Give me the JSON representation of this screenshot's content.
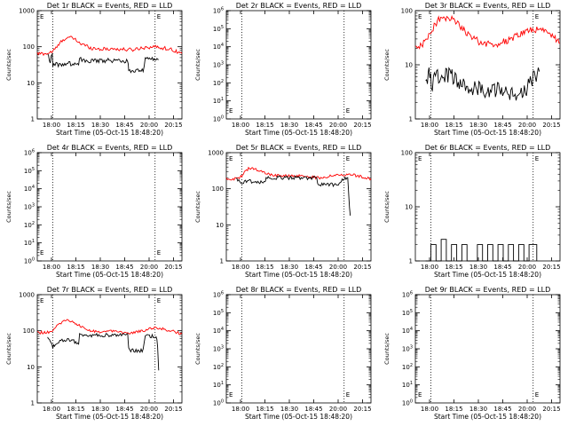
{
  "figure": {
    "background": "#ffffff",
    "events_color": "#000000",
    "lld_color": "#ff0000"
  },
  "chart_data": [
    {
      "type": "line",
      "title": "Det 1r BLACK = Events, RED = LLD",
      "ylabel": "Counts/sec",
      "xlabel": "Start Time (05-Oct-15 18:48:20)",
      "xlim": [
        17.75,
        20.55
      ],
      "ylim": [
        1,
        1000
      ],
      "yscale": "log",
      "ytick_labels": [
        "1",
        "10",
        "100",
        "1000"
      ],
      "xtick_labels": [
        "18:00",
        "18:15",
        "18:30",
        "18:45",
        "20:00",
        "20:15"
      ],
      "markers": [
        {
          "x": 18.05,
          "label": "E"
        },
        {
          "x": 20.03,
          "label": "E"
        }
      ],
      "series": [
        {
          "name": "LLD",
          "color": "#ff0000",
          "x": [
            17.75,
            17.95,
            18.05,
            18.15,
            18.25,
            18.35,
            18.45,
            18.6,
            18.8,
            19.0,
            19.2,
            19.4,
            19.6,
            19.8,
            20.0,
            20.2,
            20.4,
            20.55
          ],
          "y": [
            64,
            65,
            75,
            105,
            160,
            180,
            170,
            120,
            92,
            86,
            88,
            84,
            83,
            95,
            100,
            92,
            80,
            65
          ],
          "noise": 0.05
        },
        {
          "name": "Events",
          "color": "#000000",
          "x": [
            17.95,
            18.0,
            18.04,
            18.05,
            18.2,
            18.4,
            18.55,
            18.57,
            18.7,
            18.9,
            19.1,
            19.3,
            19.5,
            19.52,
            19.6,
            19.8,
            19.84,
            19.9,
            20.05,
            20.1
          ],
          "y": [
            60,
            40,
            60,
            32,
            32,
            34,
            30,
            45,
            40,
            40,
            42,
            40,
            40,
            22,
            22,
            22,
            45,
            45,
            45,
            44
          ],
          "noise": 0.06
        }
      ]
    },
    {
      "type": "line",
      "title": "Det 2r BLACK = Events, RED = LLD",
      "ylabel": "Counts/sec",
      "xlabel": "Start Time (05-Oct-15 18:48:20)",
      "xlim": [
        17.75,
        20.55
      ],
      "ylim": [
        1,
        1000000
      ],
      "yscale": "log",
      "ytick_labels": [
        "10^0",
        "10^1",
        "10^2",
        "10^3",
        "10^4",
        "10^5",
        "10^6"
      ],
      "xtick_labels": [
        "18:00",
        "18:15",
        "18:30",
        "18:45",
        "20:00",
        "20:15"
      ],
      "markers": [
        {
          "x": 18.05,
          "label": "E"
        },
        {
          "x": 20.03,
          "label": "E"
        }
      ],
      "series": []
    },
    {
      "type": "line",
      "title": "Det 3r BLACK = Events, RED = LLD",
      "ylabel": "Counts/sec",
      "xlabel": "Start Time (05-Oct-15 18:48:20)",
      "xlim": [
        17.75,
        20.55
      ],
      "ylim": [
        1,
        100
      ],
      "yscale": "log",
      "ytick_labels": [
        "1",
        "10",
        "100"
      ],
      "xtick_labels": [
        "18:00",
        "18:15",
        "18:30",
        "18:45",
        "20:00",
        "20:15"
      ],
      "markers": [
        {
          "x": 18.05,
          "label": "E"
        },
        {
          "x": 20.03,
          "label": "E"
        }
      ],
      "series": [
        {
          "name": "LLD",
          "color": "#ff0000",
          "x": [
            17.75,
            17.85,
            17.95,
            18.05,
            18.2,
            18.4,
            18.55,
            18.75,
            19.0,
            19.3,
            19.6,
            19.9,
            20.2,
            20.4,
            20.55
          ],
          "y": [
            20,
            22,
            28,
            42,
            68,
            76,
            62,
            38,
            26,
            23,
            30,
            42,
            46,
            35,
            25
          ],
          "noise": 0.06
        },
        {
          "name": "Events",
          "color": "#000000",
          "x": [
            17.95,
            18.0,
            18.03,
            18.06,
            18.2,
            18.4,
            18.6,
            18.8,
            19.0,
            19.3,
            19.6,
            19.8,
            19.9,
            20.05,
            20.15
          ],
          "y": [
            5,
            6,
            8,
            4.5,
            6,
            6.5,
            5,
            4,
            3.5,
            3.5,
            3,
            3,
            3.5,
            6,
            7.5
          ],
          "noise": 0.15
        }
      ]
    },
    {
      "type": "line",
      "title": "Det 4r BLACK = Events, RED = LLD",
      "ylabel": "Counts/sec",
      "xlabel": "Start Time (05-Oct-15 18:48:20)",
      "xlim": [
        17.75,
        20.55
      ],
      "ylim": [
        1,
        1000000
      ],
      "yscale": "log",
      "ytick_labels": [
        "10^0",
        "10^1",
        "10^2",
        "10^3",
        "10^4",
        "10^5",
        "10^6"
      ],
      "xtick_labels": [
        "18:00",
        "18:15",
        "18:30",
        "18:45",
        "20:00",
        "20:15"
      ],
      "markers": [
        {
          "x": 18.05,
          "label": "E"
        },
        {
          "x": 20.03,
          "label": "E"
        }
      ],
      "series": []
    },
    {
      "type": "line",
      "title": "Det 5r BLACK = Events, RED = LLD",
      "ylabel": "Counts/sec",
      "xlabel": "Start Time (05-Oct-15 18:48:20)",
      "xlim": [
        17.75,
        20.55
      ],
      "ylim": [
        1,
        1000
      ],
      "yscale": "log",
      "ytick_labels": [
        "1",
        "10",
        "100",
        "1000"
      ],
      "xtick_labels": [
        "18:00",
        "18:15",
        "18:30",
        "18:45",
        "20:00",
        "20:15"
      ],
      "markers": [
        {
          "x": 18.05,
          "label": "E"
        },
        {
          "x": 20.03,
          "label": "E"
        }
      ],
      "series": [
        {
          "name": "LLD",
          "color": "#ff0000",
          "x": [
            17.75,
            17.9,
            18.0,
            18.05,
            18.1,
            18.2,
            18.3,
            18.45,
            18.6,
            18.8,
            19.0,
            19.2,
            19.4,
            19.6,
            19.8,
            20.0,
            20.2,
            20.4,
            20.55
          ],
          "y": [
            185,
            190,
            200,
            230,
            290,
            380,
            360,
            300,
            250,
            230,
            220,
            225,
            210,
            200,
            230,
            250,
            240,
            210,
            190
          ],
          "noise": 0.04
        },
        {
          "name": "Events",
          "color": "#000000",
          "x": [
            17.95,
            18.05,
            18.1,
            18.3,
            18.5,
            18.52,
            18.7,
            18.9,
            19.1,
            19.3,
            19.5,
            19.52,
            19.7,
            19.9,
            20.05,
            20.1,
            20.12,
            20.15
          ],
          "y": [
            200,
            130,
            170,
            150,
            150,
            200,
            200,
            200,
            200,
            200,
            200,
            130,
            130,
            130,
            200,
            200,
            60,
            18
          ],
          "noise": 0.05
        }
      ]
    },
    {
      "type": "line",
      "title": "Det 6r BLACK = Events, RED = LLD",
      "ylabel": "Counts/sec",
      "xlabel": "Start Time (05-Oct-15 18:48:20)",
      "xlim": [
        17.75,
        20.55
      ],
      "ylim": [
        1,
        100
      ],
      "yscale": "log",
      "ytick_labels": [
        "1",
        "10",
        "100"
      ],
      "xtick_labels": [
        "18:00",
        "18:15",
        "18:30",
        "18:45",
        "20:00",
        "20:15"
      ],
      "markers": [
        {
          "x": 18.05,
          "label": "E"
        },
        {
          "x": 20.03,
          "label": "E"
        }
      ],
      "series": [
        {
          "name": "Events",
          "color": "#000000",
          "x": [
            17.95,
            18.05,
            18.15,
            18.25,
            18.35,
            18.45,
            18.55,
            18.65,
            18.75,
            18.85,
            18.95,
            19.05,
            19.15,
            19.25,
            19.35,
            19.45,
            19.55,
            19.65,
            19.75,
            19.85,
            19.95,
            20.05,
            20.1
          ],
          "y": [
            1,
            2,
            1,
            2.5,
            1,
            2,
            1,
            2,
            1,
            1,
            2,
            1,
            2,
            1,
            2,
            1,
            2,
            1,
            2,
            1,
            2,
            2,
            1
          ],
          "noise": 0,
          "spiky": true
        }
      ]
    },
    {
      "type": "line",
      "title": "Det 7r BLACK = Events, RED = LLD",
      "ylabel": "Counts/sec",
      "xlabel": "Start Time (05-Oct-15 18:48:20)",
      "xlim": [
        17.75,
        20.55
      ],
      "ylim": [
        1,
        1000
      ],
      "yscale": "log",
      "ytick_labels": [
        "1",
        "10",
        "100",
        "1000"
      ],
      "xtick_labels": [
        "18:00",
        "18:15",
        "18:30",
        "18:45",
        "20:00",
        "20:15"
      ],
      "markers": [
        {
          "x": 18.05,
          "label": "E"
        },
        {
          "x": 20.03,
          "label": "E"
        }
      ],
      "series": [
        {
          "name": "LLD",
          "color": "#ff0000",
          "x": [
            17.75,
            17.95,
            18.05,
            18.15,
            18.25,
            18.35,
            18.45,
            18.6,
            18.8,
            19.0,
            19.2,
            19.4,
            19.6,
            19.8,
            20.0,
            20.2,
            20.4,
            20.55
          ],
          "y": [
            88,
            90,
            105,
            140,
            185,
            200,
            180,
            130,
            98,
            92,
            95,
            90,
            88,
            100,
            120,
            110,
            95,
            82
          ],
          "noise": 0.04
        },
        {
          "name": "Events",
          "color": "#000000",
          "x": [
            17.95,
            18.0,
            18.05,
            18.1,
            18.25,
            18.4,
            18.55,
            18.57,
            18.7,
            18.9,
            19.1,
            19.3,
            19.5,
            19.52,
            19.6,
            19.8,
            19.84,
            19.9,
            20.05,
            20.08,
            20.1
          ],
          "y": [
            65,
            50,
            35,
            45,
            55,
            55,
            45,
            80,
            75,
            75,
            75,
            75,
            75,
            30,
            28,
            28,
            70,
            70,
            70,
            40,
            8
          ],
          "noise": 0.05
        }
      ]
    },
    {
      "type": "line",
      "title": "Det 8r BLACK = Events, RED = LLD",
      "ylabel": "Counts/sec",
      "xlabel": "Start Time (05-Oct-15 18:48:20)",
      "xlim": [
        17.75,
        20.55
      ],
      "ylim": [
        1,
        1000000
      ],
      "yscale": "log",
      "ytick_labels": [
        "10^0",
        "10^1",
        "10^2",
        "10^3",
        "10^4",
        "10^5",
        "10^6"
      ],
      "xtick_labels": [
        "18:00",
        "18:15",
        "18:30",
        "18:45",
        "20:00",
        "20:15"
      ],
      "markers": [
        {
          "x": 18.05,
          "label": "E"
        },
        {
          "x": 20.03,
          "label": "E"
        }
      ],
      "series": []
    },
    {
      "type": "line",
      "title": "Det 9r BLACK = Events, RED = LLD",
      "ylabel": "Counts/sec",
      "xlabel": "Start Time (05-Oct-15 18:48:20)",
      "xlim": [
        17.75,
        20.55
      ],
      "ylim": [
        1,
        1000000
      ],
      "yscale": "log",
      "ytick_labels": [
        "10^0",
        "10^1",
        "10^2",
        "10^3",
        "10^4",
        "10^5",
        "10^6"
      ],
      "xtick_labels": [
        "18:00",
        "18:15",
        "18:30",
        "18:45",
        "20:00",
        "20:15"
      ],
      "markers": [
        {
          "x": 18.05,
          "label": "E"
        },
        {
          "x": 20.03,
          "label": "E"
        }
      ],
      "series": []
    }
  ]
}
